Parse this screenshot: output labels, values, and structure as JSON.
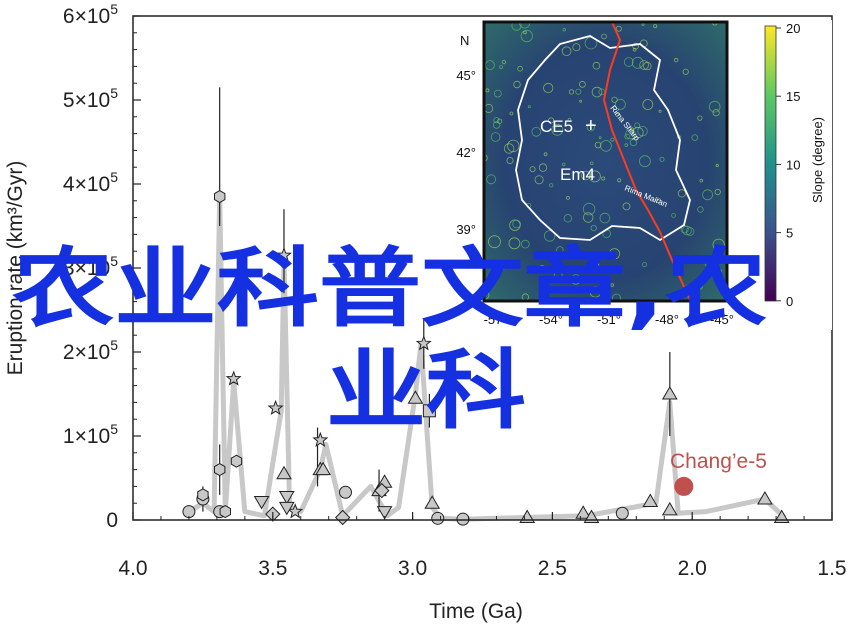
{
  "chart_data": [
    {
      "type": "scatter",
      "xlabel": "Time (Ga)",
      "ylabel": "Eruption rate (km³/Gyr)",
      "xlim": [
        4.0,
        1.5
      ],
      "ylim": [
        0,
        600000
      ],
      "x_ticks": [
        "4.0",
        "3.5",
        "3.0",
        "2.5",
        "2.0",
        "1.5"
      ],
      "x_tick_values": [
        4.0,
        3.5,
        3.0,
        2.5,
        2.0,
        1.5
      ],
      "y_tick_values": [
        0,
        100000,
        200000,
        300000,
        400000,
        500000,
        600000
      ],
      "y_ticks": [
        {
          "mantissa": "0",
          "exp": ""
        },
        {
          "mantissa": "1×10",
          "exp": "5"
        },
        {
          "mantissa": "2×10",
          "exp": "5"
        },
        {
          "mantissa": "3×10",
          "exp": "5"
        },
        {
          "mantissa": "4×10",
          "exp": "5"
        },
        {
          "mantissa": "5×10",
          "exp": "5"
        },
        {
          "mantissa": "6×10",
          "exp": "5"
        }
      ],
      "annotation": "Chang’e-5",
      "trend_line": [
        [
          3.8,
          10000
        ],
        [
          3.75,
          20000
        ],
        [
          3.71,
          10000
        ],
        [
          3.69,
          385000
        ],
        [
          3.67,
          10000
        ],
        [
          3.64,
          165000
        ],
        [
          3.6,
          10000
        ],
        [
          3.53,
          5000
        ],
        [
          3.47,
          130000
        ],
        [
          3.46,
          310000
        ],
        [
          3.44,
          15000
        ],
        [
          3.4,
          10000
        ],
        [
          3.33,
          60000
        ],
        [
          3.31,
          90000
        ],
        [
          3.25,
          5000
        ],
        [
          3.15,
          40000
        ],
        [
          3.09,
          5000
        ],
        [
          3.05,
          15000
        ],
        [
          2.99,
          150000
        ],
        [
          2.97,
          210000
        ],
        [
          2.93,
          15000
        ],
        [
          2.9,
          2000
        ],
        [
          2.82,
          1000
        ],
        [
          2.6,
          3000
        ],
        [
          2.38,
          5000
        ],
        [
          2.13,
          20000
        ],
        [
          2.08,
          140000
        ],
        [
          2.05,
          8000
        ],
        [
          1.95,
          10000
        ],
        [
          1.74,
          25000
        ],
        [
          1.67,
          3000
        ]
      ],
      "series": [
        {
          "marker": "circle",
          "points": [
            [
              3.8,
              10000
            ],
            [
              3.75,
              25000
            ],
            [
              3.69,
              10000
            ],
            [
              3.24,
              33000
            ],
            [
              2.91,
              2000
            ],
            [
              2.82,
              1000
            ],
            [
              2.25,
              8000
            ]
          ]
        },
        {
          "marker": "hexagon",
          "points": [
            [
              3.75,
              30000
            ],
            [
              3.69,
              385000
            ],
            [
              3.69,
              60000
            ],
            [
              3.67,
              10000
            ],
            [
              3.63,
              70000
            ]
          ]
        },
        {
          "marker": "star",
          "points": [
            [
              3.64,
              168000
            ],
            [
              3.49,
              133000
            ],
            [
              3.46,
              315000
            ],
            [
              3.42,
              10000
            ],
            [
              3.33,
              95000
            ],
            [
              2.96,
              210000
            ]
          ]
        },
        {
          "marker": "triangle-up",
          "points": [
            [
              3.46,
              55000
            ],
            [
              3.33,
              60000
            ],
            [
              3.32,
              60000
            ],
            [
              3.12,
              35000
            ],
            [
              3.1,
              45000
            ],
            [
              2.99,
              145000
            ],
            [
              2.93,
              20000
            ],
            [
              2.59,
              3000
            ],
            [
              2.39,
              8000
            ],
            [
              2.36,
              3000
            ],
            [
              2.15,
              22000
            ],
            [
              2.08,
              150000
            ],
            [
              2.08,
              12000
            ],
            [
              1.74,
              25000
            ],
            [
              1.68,
              3000
            ]
          ]
        },
        {
          "marker": "triangle-down",
          "points": [
            [
              3.54,
              22000
            ],
            [
              3.45,
              28000
            ],
            [
              3.45,
              15000
            ],
            [
              3.1,
              10000
            ]
          ]
        },
        {
          "marker": "diamond",
          "points": [
            [
              3.5,
              7000
            ],
            [
              3.25,
              3000
            ],
            [
              3.11,
              35000
            ]
          ]
        },
        {
          "marker": "square",
          "points": [
            [
              2.94,
              130000
            ]
          ]
        },
        {
          "marker": "circle",
          "name": "Chang’e-5",
          "color": "#c0504d",
          "points": [
            [
              2.03,
              40000
            ]
          ]
        }
      ],
      "error_bars": [
        {
          "x": 3.69,
          "low": 350000,
          "high": 515000
        },
        {
          "x": 3.46,
          "low": 270000,
          "high": 370000
        },
        {
          "x": 2.96,
          "low": 180000,
          "high": 240000
        },
        {
          "x": 2.08,
          "low": 100000,
          "high": 200000
        },
        {
          "x": 3.34,
          "low": 40000,
          "high": 110000
        },
        {
          "x": 3.12,
          "low": 10000,
          "high": 60000
        },
        {
          "x": 2.94,
          "low": 110000,
          "high": 150000
        },
        {
          "x": 3.69,
          "low": 30000,
          "high": 90000
        },
        {
          "x": 3.75,
          "low": 10000,
          "high": 40000
        }
      ],
      "grid": false,
      "colors": {
        "series": "#c8c8c8",
        "marker_fill": "#c8c8c8",
        "marker_edge": "#222222",
        "highlight": "#c0504d",
        "text": "#222222"
      }
    },
    {
      "type": "heatmap",
      "colorbar_label": "Slope (degree)",
      "colorbar_ticks": [
        "20",
        "15",
        "10",
        "5",
        "0"
      ],
      "colorbar_range": [
        0,
        20
      ],
      "x_ticks": [
        "-57",
        "-54°",
        "-51°",
        "-48°",
        "-45°"
      ],
      "y_ticks": [
        "45°",
        "42°",
        "39°"
      ],
      "north_label": "N",
      "region_labels": [
        "CE5",
        "Em4"
      ],
      "rille_labels": [
        "Rima Sharp",
        "Rima Mairan"
      ],
      "colors": {
        "boundary": "#ffffff",
        "rille": "#ff3b1f",
        "colormap": [
          "#440154",
          "#31688e",
          "#35b779",
          "#fde725"
        ]
      }
    }
  ],
  "watermark": {
    "line1": "农业科普文章,农",
    "line2": "业科",
    "color": "#1530e0"
  }
}
